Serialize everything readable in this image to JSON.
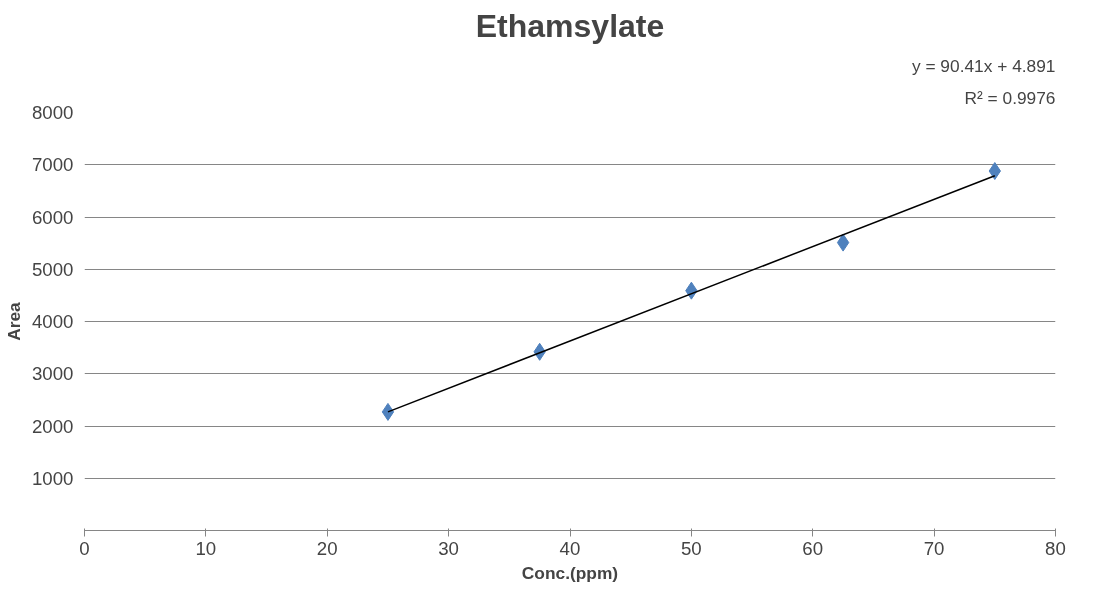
{
  "chart_data": {
    "type": "scatter",
    "title": "Ethamsylate",
    "xlabel": "Conc.(ppm)",
    "ylabel": "Area",
    "x": [
      25,
      37.5,
      50,
      62.5,
      75
    ],
    "series": [
      {
        "color": "#4f81bd",
        "marker": "diamond",
        "values": [
          2270,
          3420,
          4590,
          5510,
          6880
        ]
      },
      {
        "type": "line",
        "color": "#000000",
        "marker": "none",
        "x": [
          25,
          75
        ],
        "values": [
          2270,
          6790
        ]
      }
    ],
    "xlim": [
      0,
      80
    ],
    "xticks": [
      0,
      10,
      20,
      30,
      40,
      50,
      60,
      70,
      80
    ],
    "ylim": [
      0,
      8000
    ],
    "yticks": [
      {
        "value": 0,
        "label": null
      },
      1000,
      2000,
      3000,
      4000,
      5000,
      6000,
      7000,
      8000
    ],
    "grid": "y",
    "annotations": [
      "y = 90.41x + 4.891",
      "R² = 0.9976"
    ]
  }
}
